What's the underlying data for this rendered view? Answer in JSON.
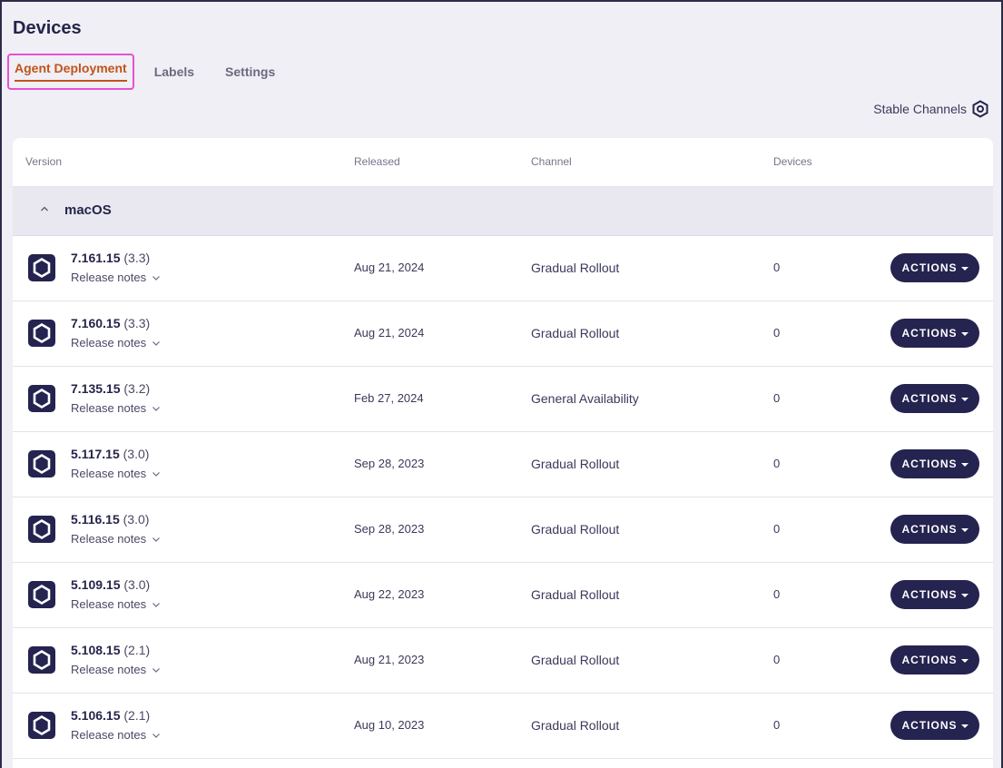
{
  "page": {
    "title": "Devices"
  },
  "tabs": [
    {
      "label": "Agent Deployment",
      "active": true
    },
    {
      "label": "Labels",
      "active": false
    },
    {
      "label": "Settings",
      "active": false
    }
  ],
  "stable_channels": {
    "label": "Stable Channels",
    "icon": "hexagon-gear-icon"
  },
  "table": {
    "columns": {
      "version": "Version",
      "released": "Released",
      "channel": "Channel",
      "devices": "Devices"
    },
    "group": {
      "label": "macOS",
      "icon": "chevron-up-icon"
    },
    "release_notes_label": "Release notes",
    "actions_label": "ACTIONS",
    "rows": [
      {
        "version": "7.161.15",
        "sub": "(3.3)",
        "released": "Aug 21, 2024",
        "channel": "Gradual Rollout",
        "devices": "0"
      },
      {
        "version": "7.160.15",
        "sub": "(3.3)",
        "released": "Aug 21, 2024",
        "channel": "Gradual Rollout",
        "devices": "0"
      },
      {
        "version": "7.135.15",
        "sub": "(3.2)",
        "released": "Feb 27, 2024",
        "channel": "General Availability",
        "devices": "0"
      },
      {
        "version": "5.117.15",
        "sub": "(3.0)",
        "released": "Sep 28, 2023",
        "channel": "Gradual Rollout",
        "devices": "0"
      },
      {
        "version": "5.116.15",
        "sub": "(3.0)",
        "released": "Sep 28, 2023",
        "channel": "Gradual Rollout",
        "devices": "0"
      },
      {
        "version": "5.109.15",
        "sub": "(3.0)",
        "released": "Aug 22, 2023",
        "channel": "Gradual Rollout",
        "devices": "0"
      },
      {
        "version": "5.108.15",
        "sub": "(2.1)",
        "released": "Aug 21, 2023",
        "channel": "Gradual Rollout",
        "devices": "0"
      },
      {
        "version": "5.106.15",
        "sub": "(2.1)",
        "released": "Aug 10, 2023",
        "channel": "Gradual Rollout",
        "devices": "0"
      }
    ]
  },
  "colors": {
    "accent": "#c0541a",
    "highlight": "#e651d2",
    "button": "#25234f",
    "background": "#f0eff5"
  }
}
